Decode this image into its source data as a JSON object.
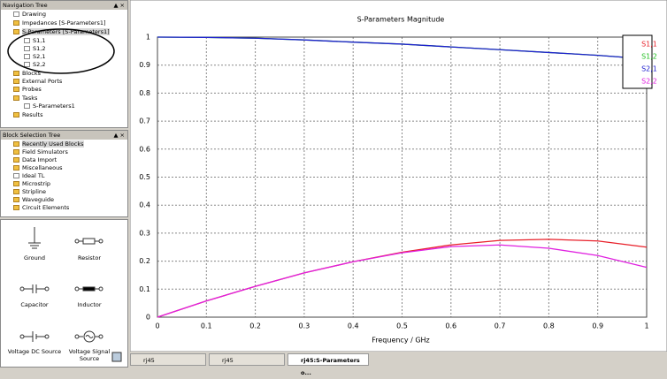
{
  "navigation_tree": {
    "title": "Navigation Tree",
    "items": [
      "Drawing",
      "Impedances [S-Parameters1]",
      "S-Parameters [S-Parameters1]",
      "S1,1",
      "S1,2",
      "S2,1",
      "S2,2",
      "Blocks",
      "External Ports",
      "Probes",
      "Tasks",
      "S-Parameters1",
      "Results"
    ]
  },
  "block_selection_tree": {
    "title": "Block Selection Tree",
    "items": [
      "Recently Used Blocks",
      "Field Simulators",
      "Data Import",
      "Miscellaneous",
      "Ideal TL",
      "Microstrip",
      "Stripline",
      "Waveguide",
      "Circuit Elements"
    ]
  },
  "palette": {
    "items": [
      "Ground",
      "Resistor",
      "Capacitor",
      "Inductor",
      "Voltage DC Source",
      "Voltage Signal Source"
    ]
  },
  "taskbar": {
    "tabs": [
      "rj45",
      "rj45",
      "rj45:S-Parameters o..."
    ]
  },
  "chart_data": {
    "type": "line",
    "title": "S-Parameters Magnitude",
    "x_label": "Frequency / GHz",
    "x": [
      0,
      0.1,
      0.2,
      0.3,
      0.4,
      0.5,
      0.6,
      0.7,
      0.8,
      0.9,
      1
    ],
    "series": [
      {
        "name": "S1,1",
        "color": "#e8202a",
        "values": [
          0,
          0.058,
          0.11,
          0.158,
          0.198,
          0.232,
          0.258,
          0.274,
          0.278,
          0.272,
          0.25
        ]
      },
      {
        "name": "S1,2",
        "color": "#22c022",
        "values": [
          1,
          0.999,
          0.996,
          0.99,
          0.982,
          0.975,
          0.965,
          0.955,
          0.945,
          0.935,
          0.922
        ]
      },
      {
        "name": "S2,1",
        "color": "#2020d0",
        "values": [
          1,
          0.999,
          0.996,
          0.99,
          0.982,
          0.975,
          0.965,
          0.955,
          0.945,
          0.935,
          0.922
        ]
      },
      {
        "name": "S2,2",
        "color": "#e020e0",
        "values": [
          0,
          0.058,
          0.11,
          0.158,
          0.198,
          0.23,
          0.252,
          0.258,
          0.246,
          0.22,
          0.178
        ]
      }
    ],
    "xlim": [
      0,
      1
    ],
    "ylim": [
      0,
      1
    ],
    "xticks": [
      0,
      0.1,
      0.2,
      0.3,
      0.4,
      0.5,
      0.6,
      0.7,
      0.8,
      0.9,
      1
    ],
    "yticks": [
      0,
      0.1,
      0.2,
      0.3,
      0.4,
      0.5,
      0.6,
      0.7,
      0.8,
      0.9,
      1
    ],
    "grid": true
  }
}
